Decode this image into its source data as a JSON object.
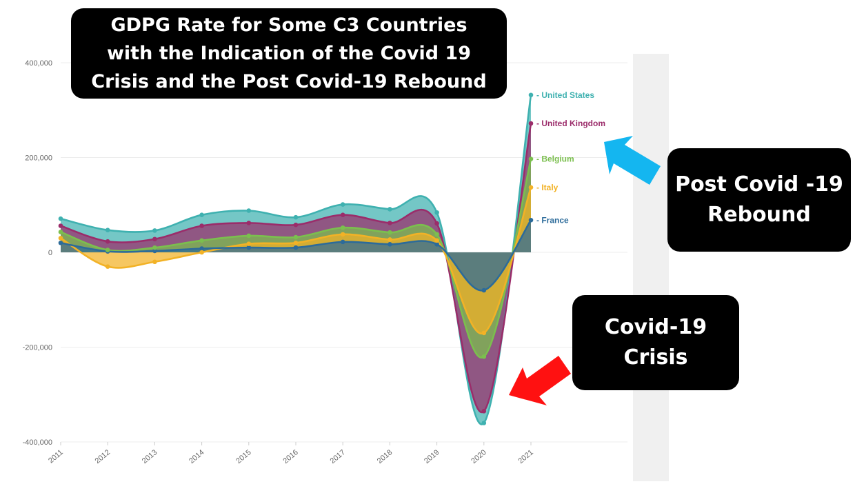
{
  "annotations": {
    "title": "GDPG Rate for Some C3 Countries\nwith the Indication of the Covid 19\nCrisis and the Post Covid-19 Rebound",
    "rebound": "Post Covid -19\nRebound",
    "crisis": "Covid-19\nCrisis"
  },
  "colors": {
    "United States": "#3fb1b0",
    "United Kingdom": "#9b2c6a",
    "Belgium": "#7bbf4e",
    "Italy": "#f2b226",
    "France": "#2c6b9a",
    "arrow_rebound": "#14b6f0",
    "arrow_crisis": "#ff1111"
  },
  "chart_data": {
    "type": "area",
    "stacked": true,
    "x": [
      "2011",
      "2012",
      "2013",
      "2014",
      "2015",
      "2016",
      "2017",
      "2018",
      "2019",
      "2020",
      "2021"
    ],
    "ylim": [
      -400000,
      400000
    ],
    "yticks": [
      -400000,
      -200000,
      0,
      200000,
      400000
    ],
    "ytick_labels": [
      "-400,000",
      "-200,000",
      "0",
      "200,000",
      "400,000"
    ],
    "cumulative_series": [
      {
        "name": "France",
        "values": [
          20000,
          2000,
          3000,
          8000,
          10000,
          10000,
          22000,
          17000,
          17000,
          -80000,
          68000
        ]
      },
      {
        "name": "Italy",
        "values": [
          30000,
          -30000,
          -20000,
          0,
          18000,
          20000,
          38000,
          27000,
          25000,
          -170000,
          137000
        ]
      },
      {
        "name": "Belgium",
        "values": [
          43000,
          5000,
          10000,
          25000,
          35000,
          32000,
          52000,
          42000,
          38000,
          -220000,
          197000
        ]
      },
      {
        "name": "United Kingdom",
        "values": [
          56000,
          23000,
          28000,
          56000,
          62000,
          58000,
          79000,
          62000,
          61000,
          -335000,
          272000
        ]
      },
      {
        "name": "United States",
        "values": [
          71000,
          47000,
          46000,
          79000,
          88000,
          74000,
          101000,
          91000,
          84000,
          -360000,
          332000
        ]
      }
    ],
    "grid": true,
    "legend": "right end of series"
  }
}
